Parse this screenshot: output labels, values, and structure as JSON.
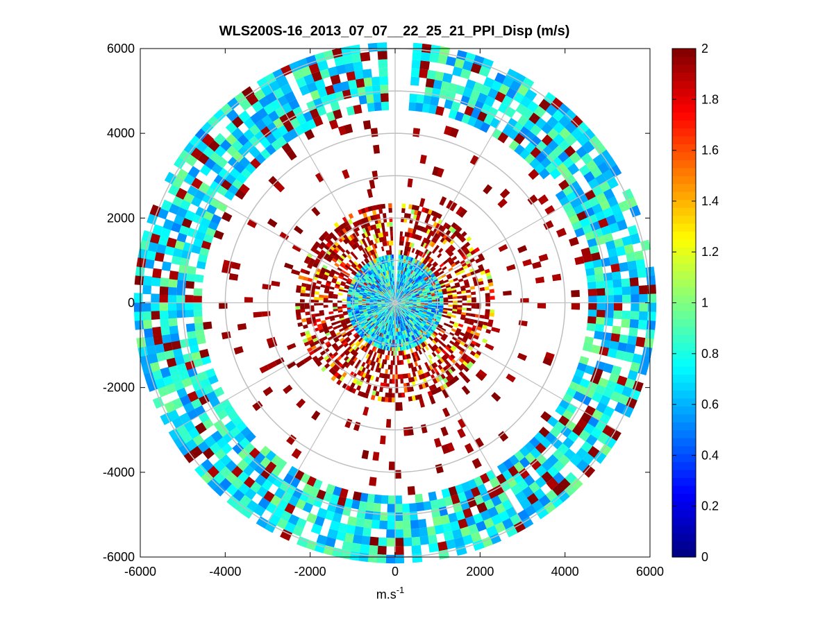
{
  "chart_data": {
    "type": "heatmap",
    "subtype": "polar-ppi",
    "title": "WLS200S-16_2013_07_07__22_25_21_PPI_Disp (m/s)",
    "xlabel_base": "m.s",
    "xlabel_exp": "-1",
    "ylabel": "",
    "xlim": [
      -6000,
      6000
    ],
    "ylim": [
      -6000,
      6000
    ],
    "x_ticks": [
      -6000,
      -4000,
      -2000,
      0,
      2000,
      4000,
      6000
    ],
    "y_ticks": [
      6000,
      4000,
      2000,
      0,
      -2000,
      -4000,
      -6000
    ],
    "x_tick_labels": [
      "-6000",
      "-4000",
      "-2000",
      "0",
      "2000",
      "4000",
      "6000"
    ],
    "y_tick_labels": [
      "6000",
      "4000",
      "2000",
      "0",
      "-2000",
      "-4000",
      "-6000"
    ],
    "polar_grid": {
      "ring_radii": [
        1000,
        2000,
        3000,
        4000,
        5000,
        6000
      ],
      "spoke_angles_deg": [
        0,
        30,
        60,
        90,
        120,
        150,
        180,
        210,
        240,
        270,
        300,
        330
      ]
    },
    "colorbar": {
      "range": [
        0,
        2
      ],
      "ticks": [
        0,
        0.2,
        0.4,
        0.6,
        0.8,
        1,
        1.2,
        1.4,
        1.6,
        1.8,
        2
      ],
      "tick_labels": [
        "0",
        "0.2",
        "0.4",
        "0.6",
        "0.8",
        "1",
        "1.2",
        "1.4",
        "1.6",
        "1.8",
        "2"
      ],
      "colormap": "jet"
    },
    "data_description": {
      "near_range_m": [
        0,
        1100
      ],
      "near_range_typical_value": 0.7,
      "middle_ring_m": [
        1100,
        2300
      ],
      "middle_ring_typical_value": 2,
      "outer_ring_m": [
        4500,
        6000
      ],
      "outer_ring_typical_value": 0.75,
      "blind_sector_azimuth_deg": [
        -3,
        4
      ]
    }
  },
  "colors": {
    "axes": "#000000",
    "grid": "#bfbfbf",
    "background": "#ffffff"
  }
}
